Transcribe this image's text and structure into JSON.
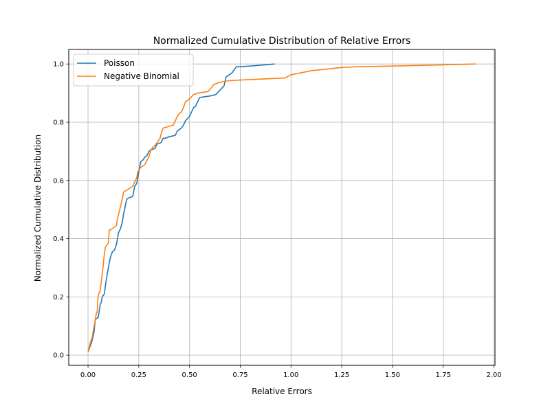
{
  "chart_data": {
    "type": "line",
    "title": "Normalized Cumulative Distribution of Relative Errors",
    "xlabel": "Relative Errors",
    "ylabel": "Normalized Cumulative Distribution",
    "xlim": [
      -0.095,
      2.005
    ],
    "ylim": [
      -0.035,
      1.05
    ],
    "xticks": [
      0.0,
      0.25,
      0.5,
      0.75,
      1.0,
      1.25,
      1.5,
      1.75,
      2.0
    ],
    "yticks": [
      0.0,
      0.2,
      0.4,
      0.6,
      0.8,
      1.0
    ],
    "xtick_labels": [
      "0.00",
      "0.25",
      "0.50",
      "0.75",
      "1.00",
      "1.25",
      "1.50",
      "1.75",
      "2.00"
    ],
    "ytick_labels": [
      "0.0",
      "0.2",
      "0.4",
      "0.6",
      "0.8",
      "1.0"
    ],
    "grid": true,
    "legend_position": "top-left",
    "series": [
      {
        "name": "Poisson",
        "color": "#1f77b4",
        "x": [
          0.0,
          0.01,
          0.02,
          0.03,
          0.035,
          0.04,
          0.05,
          0.055,
          0.06,
          0.065,
          0.07,
          0.08,
          0.09,
          0.095,
          0.1,
          0.11,
          0.12,
          0.13,
          0.14,
          0.15,
          0.16,
          0.17,
          0.175,
          0.18,
          0.19,
          0.2,
          0.22,
          0.23,
          0.24,
          0.25,
          0.26,
          0.27,
          0.28,
          0.29,
          0.3,
          0.31,
          0.33,
          0.34,
          0.36,
          0.37,
          0.38,
          0.4,
          0.43,
          0.44,
          0.46,
          0.47,
          0.48,
          0.5,
          0.51,
          0.52,
          0.53,
          0.54,
          0.55,
          0.6,
          0.63,
          0.65,
          0.67,
          0.68,
          0.7,
          0.71,
          0.72,
          0.73,
          0.8,
          0.92
        ],
        "y": [
          0.01,
          0.03,
          0.05,
          0.08,
          0.12,
          0.125,
          0.13,
          0.15,
          0.175,
          0.18,
          0.2,
          0.21,
          0.26,
          0.28,
          0.3,
          0.335,
          0.355,
          0.36,
          0.38,
          0.42,
          0.435,
          0.46,
          0.485,
          0.5,
          0.535,
          0.54,
          0.545,
          0.58,
          0.59,
          0.63,
          0.665,
          0.67,
          0.68,
          0.685,
          0.7,
          0.705,
          0.71,
          0.725,
          0.73,
          0.745,
          0.745,
          0.75,
          0.755,
          0.77,
          0.78,
          0.79,
          0.805,
          0.82,
          0.835,
          0.85,
          0.855,
          0.87,
          0.885,
          0.89,
          0.895,
          0.91,
          0.925,
          0.955,
          0.965,
          0.97,
          0.98,
          0.99,
          0.993,
          1.0
        ]
      },
      {
        "name": "Negative Binomial",
        "color": "#ff7f0e",
        "x": [
          0.0,
          0.01,
          0.02,
          0.03,
          0.04,
          0.045,
          0.05,
          0.055,
          0.06,
          0.065,
          0.07,
          0.075,
          0.08,
          0.085,
          0.09,
          0.1,
          0.105,
          0.11,
          0.12,
          0.14,
          0.145,
          0.16,
          0.17,
          0.175,
          0.22,
          0.24,
          0.245,
          0.25,
          0.26,
          0.27,
          0.28,
          0.29,
          0.3,
          0.31,
          0.32,
          0.33,
          0.34,
          0.355,
          0.36,
          0.37,
          0.42,
          0.43,
          0.44,
          0.45,
          0.46,
          0.47,
          0.48,
          0.5,
          0.52,
          0.54,
          0.59,
          0.61,
          0.62,
          0.64,
          0.67,
          0.7,
          0.75,
          0.97,
          1.0,
          1.03,
          1.1,
          1.25,
          1.3,
          1.5,
          1.75,
          1.91
        ],
        "y": [
          0.01,
          0.04,
          0.06,
          0.1,
          0.14,
          0.15,
          0.205,
          0.215,
          0.22,
          0.25,
          0.28,
          0.31,
          0.345,
          0.37,
          0.375,
          0.385,
          0.43,
          0.43,
          0.435,
          0.445,
          0.47,
          0.51,
          0.54,
          0.56,
          0.58,
          0.61,
          0.63,
          0.635,
          0.645,
          0.65,
          0.655,
          0.67,
          0.68,
          0.705,
          0.715,
          0.72,
          0.73,
          0.745,
          0.76,
          0.78,
          0.79,
          0.805,
          0.82,
          0.83,
          0.835,
          0.85,
          0.87,
          0.88,
          0.895,
          0.9,
          0.905,
          0.92,
          0.93,
          0.935,
          0.94,
          0.943,
          0.945,
          0.952,
          0.963,
          0.967,
          0.977,
          0.988,
          0.99,
          0.993,
          0.997,
          1.0
        ]
      }
    ]
  }
}
